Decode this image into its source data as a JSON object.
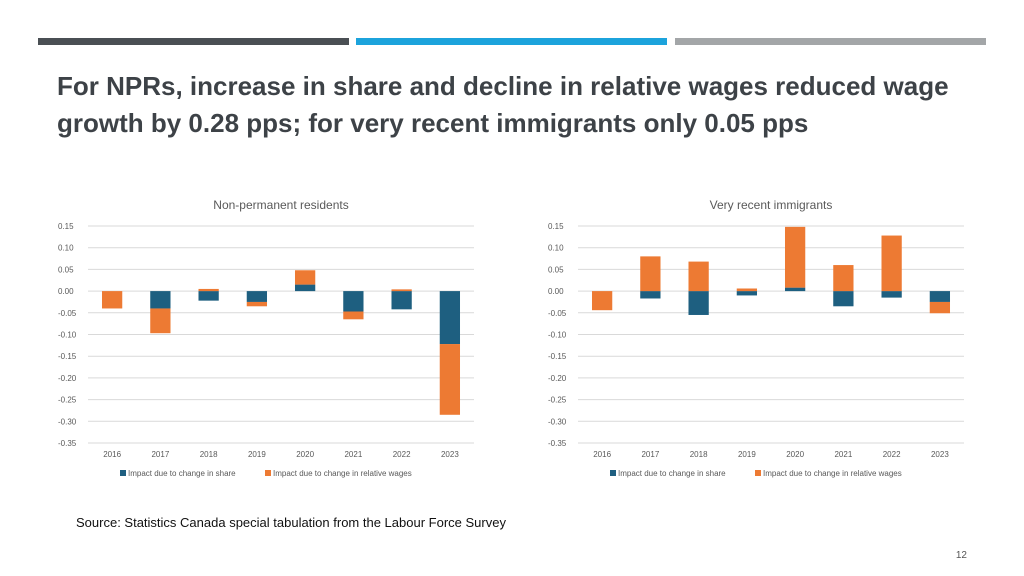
{
  "slide": {
    "title": "For NPRs, increase in share and decline in relative wages reduced wage growth by 0.28 pps; for very recent immigrants only 0.05 pps",
    "source": "Source: Statistics Canada special tabulation from the Labour Force Survey",
    "page_number": "12",
    "bar_colors": [
      "#4a4f54",
      "#1ca3dc",
      "#a3a6a8"
    ]
  },
  "colors": {
    "share": "#1e5f80",
    "wages": "#ed7a33",
    "grid": "#d9d9d9",
    "text": "#595959"
  },
  "chart_data": [
    {
      "type": "bar",
      "stacked": true,
      "title": "Non-permanent residents",
      "categories": [
        "2016",
        "2017",
        "2018",
        "2019",
        "2020",
        "2021",
        "2022",
        "2023"
      ],
      "ylim": [
        -0.35,
        0.15
      ],
      "yticks": [
        0.15,
        0.1,
        0.05,
        0.0,
        -0.05,
        -0.1,
        -0.15,
        -0.2,
        -0.25,
        -0.3,
        -0.35
      ],
      "ytick_labels": [
        "0.15",
        "0.10",
        "0.05",
        "0.00",
        "-0.05",
        "-0.10",
        "-0.15",
        "-0.20",
        "-0.25",
        "-0.30",
        "-0.35"
      ],
      "series": [
        {
          "name": "Impact due to change in share",
          "values": [
            0.0,
            -0.04,
            -0.022,
            -0.025,
            0.015,
            -0.047,
            -0.042,
            -0.122
          ]
        },
        {
          "name": "Impact due to change in relative wages",
          "values": [
            -0.04,
            -0.057,
            0.005,
            -0.01,
            0.033,
            -0.018,
            0.004,
            -0.163
          ]
        }
      ],
      "legend": "bottom"
    },
    {
      "type": "bar",
      "stacked": true,
      "title": "Very recent immigrants",
      "categories": [
        "2016",
        "2017",
        "2018",
        "2019",
        "2020",
        "2021",
        "2022",
        "2023"
      ],
      "ylim": [
        -0.35,
        0.15
      ],
      "yticks": [
        0.15,
        0.1,
        0.05,
        0.0,
        -0.05,
        -0.1,
        -0.15,
        -0.2,
        -0.25,
        -0.3,
        -0.35
      ],
      "ytick_labels": [
        "0.15",
        "0.10",
        "0.05",
        "0.00",
        "-0.05",
        "-0.10",
        "-0.15",
        "-0.20",
        "-0.25",
        "-0.30",
        "-0.35"
      ],
      "series": [
        {
          "name": "Impact due to change in share",
          "values": [
            0.0,
            -0.017,
            -0.055,
            -0.01,
            0.008,
            -0.035,
            -0.015,
            -0.025
          ]
        },
        {
          "name": "Impact due to change in relative wages",
          "values": [
            -0.044,
            0.08,
            0.068,
            0.006,
            0.14,
            0.06,
            0.128,
            -0.026
          ]
        }
      ],
      "legend": "bottom"
    }
  ]
}
